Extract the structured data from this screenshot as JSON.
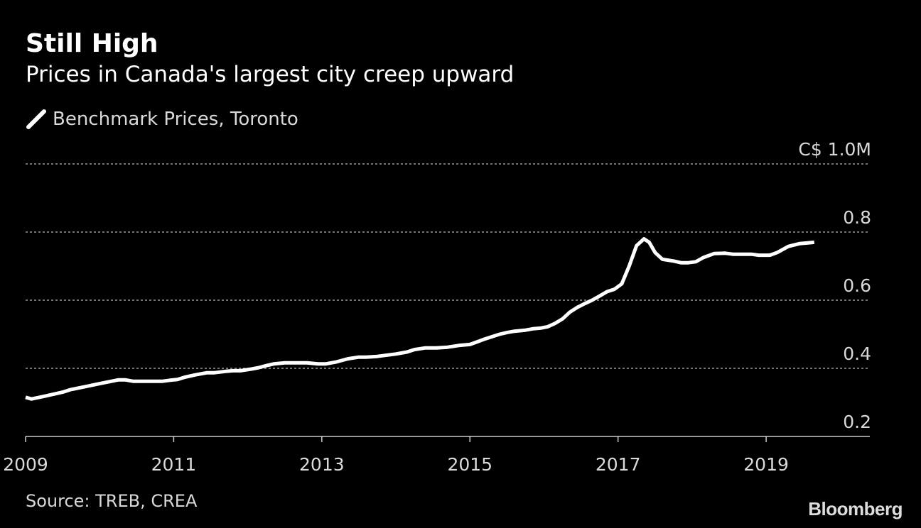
{
  "header": {
    "title": "Still High",
    "subtitle": "Prices in Canada's largest city creep upward"
  },
  "legend": {
    "label": "Benchmark Prices, Toronto",
    "color": "#ffffff"
  },
  "footer": {
    "source": "Source: TREB, CREA",
    "logo": "Bloomberg"
  },
  "colors": {
    "background": "#000000",
    "line": "#ffffff",
    "grid": "#9a9a9a",
    "text_muted": "#d9d9d9"
  },
  "chart_data": {
    "type": "line",
    "title": "Still High",
    "subtitle": "Prices in Canada's largest city creep upward",
    "xlabel": "",
    "ylabel": "",
    "unit_label": "C$ 1.0M",
    "xlim": [
      2009,
      2020.4
    ],
    "ylim": [
      0.2,
      1.0
    ],
    "grid": true,
    "legend": "top-left",
    "x_ticks": [
      2009,
      2011,
      2013,
      2015,
      2017,
      2019
    ],
    "x_tick_labels": [
      "2009",
      "2011",
      "2013",
      "2015",
      "2017",
      "2019"
    ],
    "y_ticks": [
      0.2,
      0.4,
      0.6,
      0.8,
      1.0
    ],
    "y_tick_labels": [
      "0.2",
      "0.4",
      "0.6",
      "0.8",
      "C$ 1.0M"
    ],
    "series": [
      {
        "name": "Benchmark Prices, Toronto",
        "x": [
          2009.0,
          2009.08,
          2009.25,
          2009.5,
          2009.6,
          2009.8,
          2010.0,
          2010.25,
          2010.35,
          2010.45,
          2010.6,
          2010.85,
          2010.95,
          2011.05,
          2011.15,
          2011.3,
          2011.45,
          2011.55,
          2011.7,
          2011.8,
          2011.9,
          2012.05,
          2012.15,
          2012.25,
          2012.35,
          2012.5,
          2012.65,
          2012.8,
          2012.95,
          2013.05,
          2013.2,
          2013.35,
          2013.5,
          2013.6,
          2013.75,
          2013.85,
          2014.0,
          2014.15,
          2014.25,
          2014.4,
          2014.55,
          2014.7,
          2014.85,
          2015.0,
          2015.1,
          2015.2,
          2015.3,
          2015.4,
          2015.5,
          2015.6,
          2015.75,
          2015.85,
          2015.95,
          2016.05,
          2016.15,
          2016.25,
          2016.35,
          2016.45,
          2016.55,
          2016.65,
          2016.75,
          2016.85,
          2016.95,
          2017.05,
          2017.15,
          2017.25,
          2017.35,
          2017.42,
          2017.5,
          2017.6,
          2017.75,
          2017.85,
          2017.95,
          2018.05,
          2018.15,
          2018.3,
          2018.45,
          2018.55,
          2018.7,
          2018.8,
          2018.9,
          2019.05,
          2019.15,
          2019.3,
          2019.45,
          2019.55,
          2019.65
        ],
        "values": [
          0.315,
          0.31,
          0.318,
          0.33,
          0.337,
          0.346,
          0.355,
          0.366,
          0.366,
          0.362,
          0.362,
          0.362,
          0.365,
          0.367,
          0.374,
          0.381,
          0.387,
          0.387,
          0.391,
          0.393,
          0.393,
          0.398,
          0.402,
          0.408,
          0.413,
          0.416,
          0.416,
          0.416,
          0.413,
          0.413,
          0.419,
          0.428,
          0.433,
          0.433,
          0.435,
          0.438,
          0.442,
          0.448,
          0.455,
          0.46,
          0.46,
          0.462,
          0.467,
          0.47,
          0.478,
          0.486,
          0.493,
          0.5,
          0.505,
          0.509,
          0.512,
          0.516,
          0.518,
          0.522,
          0.532,
          0.545,
          0.565,
          0.579,
          0.59,
          0.6,
          0.612,
          0.625,
          0.632,
          0.648,
          0.7,
          0.76,
          0.78,
          0.77,
          0.74,
          0.72,
          0.715,
          0.71,
          0.71,
          0.713,
          0.725,
          0.737,
          0.738,
          0.735,
          0.735,
          0.735,
          0.732,
          0.732,
          0.74,
          0.758,
          0.766,
          0.768,
          0.77
        ]
      }
    ]
  }
}
